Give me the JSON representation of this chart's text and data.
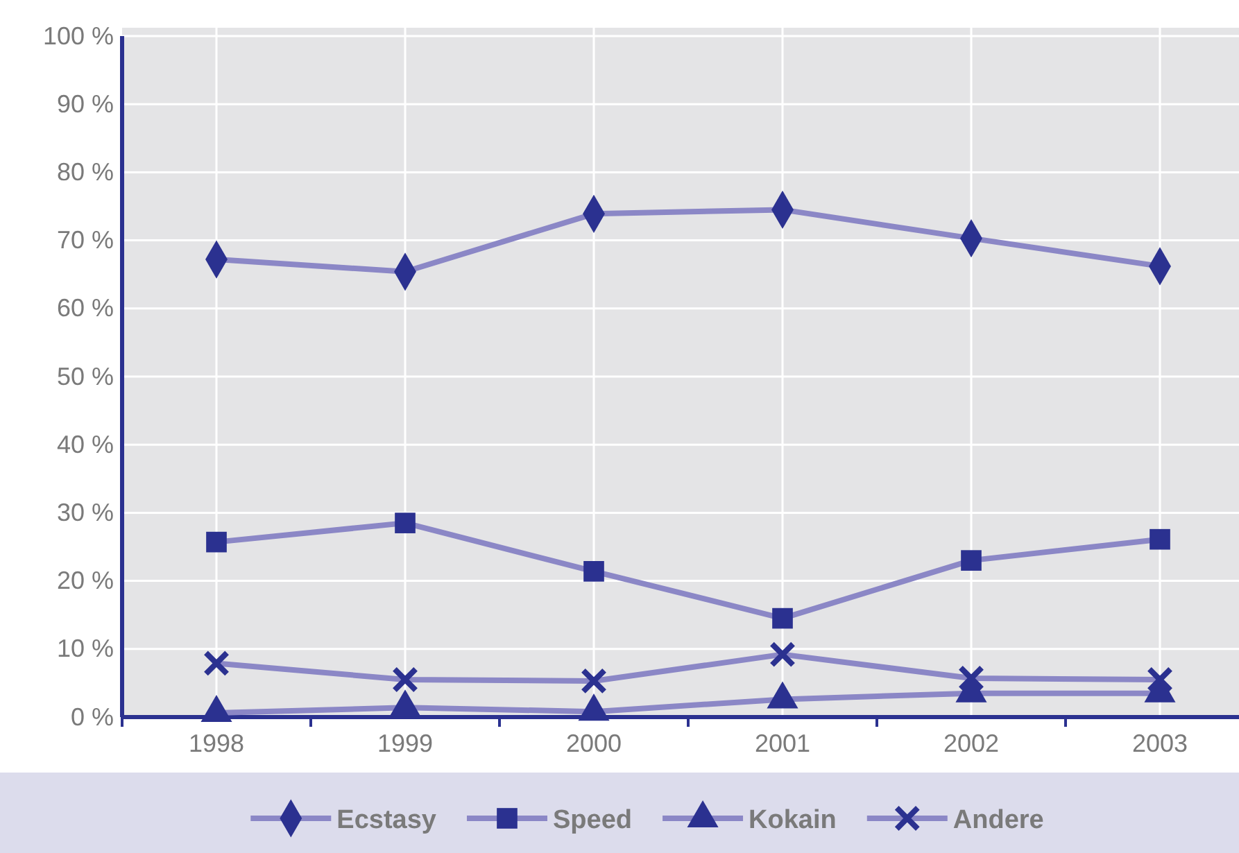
{
  "chart_data": {
    "type": "line",
    "categories": [
      "1998",
      "1999",
      "2000",
      "2001",
      "2002",
      "2003"
    ],
    "ylim": [
      0,
      100
    ],
    "yticks": [
      {
        "value": 0,
        "label": "0 %"
      },
      {
        "value": 10,
        "label": "10 %"
      },
      {
        "value": 20,
        "label": "20 %"
      },
      {
        "value": 30,
        "label": "30 %"
      },
      {
        "value": 40,
        "label": "40 %"
      },
      {
        "value": 50,
        "label": "50 %"
      },
      {
        "value": 60,
        "label": "60 %"
      },
      {
        "value": 70,
        "label": "70 %"
      },
      {
        "value": 80,
        "label": "80 %"
      },
      {
        "value": 90,
        "label": "90 %"
      },
      {
        "value": 100,
        "label": "100 %"
      }
    ],
    "grid": true,
    "legend": "bottom",
    "line_style": "solid",
    "series": [
      {
        "name": "Ecstasy",
        "color": "#8b87c6",
        "marker": "diamond",
        "values": [
          67.2,
          65.4,
          73.9,
          74.5,
          70.3,
          66.2
        ]
      },
      {
        "name": "Speed",
        "color": "#8b87c6",
        "marker": "square",
        "values": [
          25.7,
          28.5,
          21.4,
          14.5,
          23.0,
          26.1
        ]
      },
      {
        "name": "Kokain",
        "color": "#8b87c6",
        "marker": "triangle",
        "values": [
          0.6,
          1.4,
          0.8,
          2.6,
          3.5,
          3.5
        ]
      },
      {
        "name": "Andere",
        "color": "#8b87c6",
        "marker": "cross",
        "values": [
          7.9,
          5.5,
          5.3,
          9.2,
          5.7,
          5.5
        ]
      }
    ]
  }
}
